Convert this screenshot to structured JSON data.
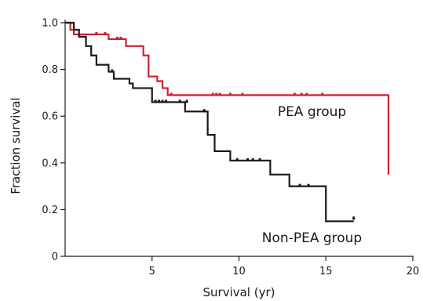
{
  "chart_data": {
    "type": "line",
    "step": true,
    "xlabel": "Survival (yr)",
    "ylabel": "Fraction survival",
    "xlim": [
      0,
      20
    ],
    "ylim": [
      0,
      1.0
    ],
    "xticks": [
      5,
      10,
      15,
      20
    ],
    "yticks": [
      0,
      0.2,
      0.4,
      0.6,
      0.8,
      1.0
    ],
    "ytick_labels": [
      "0",
      "0.2",
      "0.4",
      "0.6",
      "0.8",
      "1.0"
    ],
    "grid": false,
    "series": [
      {
        "name": "PEA group",
        "color": "#cc2233",
        "points": [
          [
            0,
            1.0
          ],
          [
            0.3,
            0.97
          ],
          [
            0.5,
            0.95
          ],
          [
            2.5,
            0.93
          ],
          [
            3.5,
            0.9
          ],
          [
            4.5,
            0.86
          ],
          [
            4.8,
            0.77
          ],
          [
            5.3,
            0.75
          ],
          [
            5.6,
            0.72
          ],
          [
            5.9,
            0.69
          ],
          [
            18.6,
            0.69
          ],
          [
            18.6,
            0.35
          ]
        ],
        "censored": [
          [
            1.8,
            0.95
          ],
          [
            2.3,
            0.95
          ],
          [
            3.0,
            0.93
          ],
          [
            3.2,
            0.93
          ],
          [
            6.1,
            0.69
          ],
          [
            8.5,
            0.69
          ],
          [
            8.7,
            0.69
          ],
          [
            8.9,
            0.69
          ],
          [
            9.5,
            0.69
          ],
          [
            10.2,
            0.69
          ],
          [
            13.2,
            0.69
          ],
          [
            13.6,
            0.69
          ],
          [
            13.9,
            0.69
          ],
          [
            14.8,
            0.69
          ]
        ]
      },
      {
        "name": "Non-PEA group",
        "color": "#1a1a1a",
        "points": [
          [
            0,
            1.0
          ],
          [
            0.5,
            0.97
          ],
          [
            0.8,
            0.94
          ],
          [
            1.2,
            0.9
          ],
          [
            1.5,
            0.86
          ],
          [
            1.8,
            0.82
          ],
          [
            2.5,
            0.79
          ],
          [
            2.8,
            0.76
          ],
          [
            3.7,
            0.74
          ],
          [
            3.9,
            0.72
          ],
          [
            5.0,
            0.66
          ],
          [
            6.9,
            0.62
          ],
          [
            8.2,
            0.52
          ],
          [
            8.6,
            0.45
          ],
          [
            9.5,
            0.41
          ],
          [
            11.8,
            0.35
          ],
          [
            12.9,
            0.3
          ],
          [
            15.0,
            0.15
          ],
          [
            16.6,
            0.15
          ]
        ],
        "censored": [
          [
            2.7,
            0.79
          ],
          [
            5.2,
            0.66
          ],
          [
            5.4,
            0.66
          ],
          [
            5.6,
            0.66
          ],
          [
            5.8,
            0.66
          ],
          [
            6.6,
            0.66
          ],
          [
            7.0,
            0.66
          ],
          [
            8.0,
            0.62
          ],
          [
            9.9,
            0.41
          ],
          [
            10.5,
            0.41
          ],
          [
            10.8,
            0.41
          ],
          [
            11.2,
            0.41
          ],
          [
            13.5,
            0.3
          ],
          [
            14.0,
            0.3
          ],
          [
            16.6,
            0.16
          ]
        ]
      }
    ],
    "annotations": [
      {
        "text": "PEA group",
        "x": 14.2,
        "y": 0.6,
        "series": 0
      },
      {
        "text": "Non-PEA group",
        "x": 14.2,
        "y": 0.06,
        "series": 1
      }
    ]
  }
}
